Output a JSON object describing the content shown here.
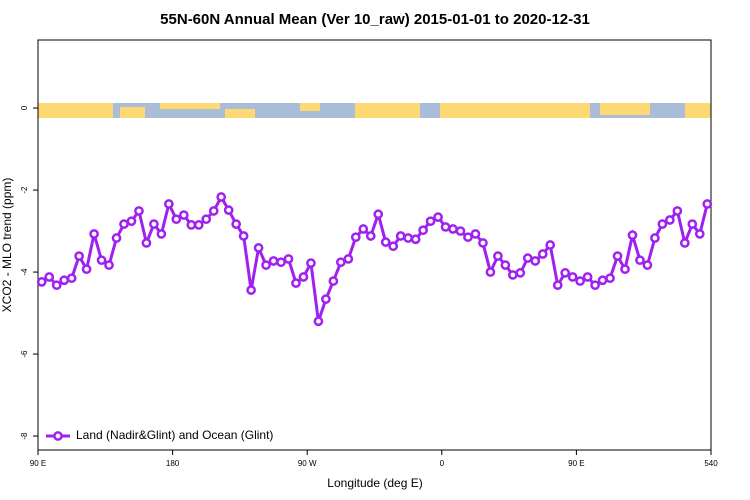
{
  "chart_data": {
    "type": "line",
    "title": "55N-60N Annual Mean (Ver 10_raw)   2015-01-01 to 2020-12-31",
    "x_label": "Longitude (deg E)",
    "y_label": "XCO2 - MLO trend (ppm)",
    "xlim": [
      90,
      540
    ],
    "xticks": [
      {
        "value": 90,
        "label": "90 E"
      },
      180,
      {
        "value": 270,
        "label": "90 W"
      },
      {
        "value": 360,
        "label": "0"
      },
      {
        "value": 450,
        "label": "90 E"
      },
      540
    ],
    "ylim": [
      -8.34,
      1.66
    ],
    "yticks": [
      0,
      -2,
      -4,
      -6,
      -8
    ],
    "legend": "bottom-left",
    "x": [
      92.5,
      97.5,
      102.5,
      107.5,
      112.5,
      117.5,
      122.5,
      127.5,
      132.5,
      137.5,
      142.5,
      147.5,
      152.5,
      157.5,
      162.5,
      167.5,
      172.5,
      177.5,
      182.5,
      187.5,
      192.5,
      197.5,
      202.5,
      207.5,
      212.5,
      217.5,
      222.5,
      227.5,
      232.5,
      237.5,
      242.5,
      247.5,
      252.5,
      257.5,
      262.5,
      267.5,
      272.5,
      277.5,
      282.5,
      287.5,
      292.5,
      297.5,
      302.5,
      307.5,
      312.5,
      317.5,
      322.5,
      327.5,
      332.5,
      337.5,
      342.5,
      347.5,
      352.5,
      357.5,
      362.5,
      367.5,
      372.5,
      377.5,
      382.5,
      387.5,
      392.5,
      397.5,
      402.5,
      407.5,
      412.5,
      417.5,
      422.5,
      427.5,
      432.5,
      437.5,
      442.5,
      447.5,
      452.5,
      457.5,
      462.5,
      467.5,
      472.5,
      477.5,
      482.5,
      487.5,
      492.5,
      497.5,
      502.5,
      507.5,
      512.5,
      517.5,
      522.5,
      527.5,
      532.5,
      537.5
    ],
    "series": [
      {
        "name": "Land (Nadir&Glint) and Ocean (Glint)",
        "color": "#a020f0",
        "values": [
          -4.24,
          -4.12,
          -4.32,
          -4.2,
          -4.15,
          -3.61,
          -3.93,
          -3.07,
          -3.71,
          -3.83,
          -3.17,
          -2.83,
          -2.76,
          -2.51,
          -3.29,
          -2.83,
          -3.07,
          -2.34,
          -2.71,
          -2.61,
          -2.85,
          -2.85,
          -2.71,
          -2.51,
          -2.17,
          -2.49,
          -2.83,
          -3.12,
          -4.44,
          -3.41,
          -3.83,
          -3.73,
          -3.76,
          -3.68,
          -4.27,
          -4.12,
          -3.78,
          -5.2,
          -4.66,
          -4.22,
          -3.76,
          -3.68,
          -3.15,
          -2.95,
          -3.12,
          -2.59,
          -3.27,
          -3.37,
          -3.12,
          -3.17,
          -3.2,
          -2.98,
          -2.76,
          -2.66,
          -2.9,
          -2.95,
          -3.0,
          -3.15,
          -3.07,
          -3.29,
          -4.0,
          -3.61,
          -3.83,
          -4.07,
          -4.02,
          -3.66,
          -3.73,
          -3.56,
          -3.34,
          -4.32,
          -4.02,
          -4.12,
          -4.22,
          -4.12,
          -4.32,
          -4.2,
          -4.15,
          -3.61,
          -3.93,
          -3.1,
          -3.71,
          -3.83,
          -3.17,
          -2.83,
          -2.73,
          -2.51,
          -3.29,
          -2.83,
          -3.07,
          -2.34
        ]
      }
    ]
  }
}
